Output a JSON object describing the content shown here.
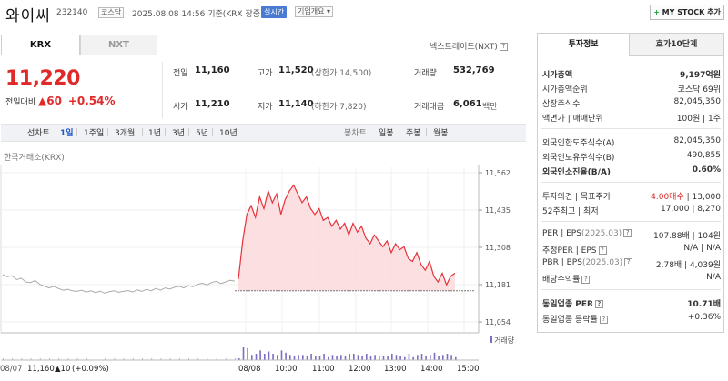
{
  "header": {
    "name": "와이씨",
    "code": "232140",
    "market": "코스닥",
    "datetime": "2025.08.08 14:56 기준(KRX 장중)",
    "realtime": "실시간",
    "overview": "기업개요 ▾",
    "mystock_plus": "+",
    "mystock": " MY STOCK 추가"
  },
  "market_tabs": [
    "KRX",
    "NXT"
  ],
  "nextrade": {
    "label": "넥스트레이드(NXT)",
    "help": "?"
  },
  "price": {
    "current": "11,220",
    "change_label": "전일대비",
    "change_value": "▲60",
    "change_rate": "+0.54%"
  },
  "quote": {
    "prev_close": {
      "label": "전일",
      "value": "11,160"
    },
    "high": {
      "label": "고가",
      "value": "11,520",
      "sub": "(상한가 14,500)"
    },
    "volume": {
      "label": "거래량",
      "value": "532,769"
    },
    "open": {
      "label": "시가",
      "value": "11,210"
    },
    "low": {
      "label": "저가",
      "value": "11,140",
      "sub": "(하한가 7,820)"
    },
    "amount": {
      "label": "거래대금",
      "value": "6,061",
      "unit": "백만"
    }
  },
  "periods": {
    "line": "선차트",
    "items": [
      "1일",
      "1주일",
      "3개월",
      "1년",
      "3년",
      "5년",
      "10년"
    ],
    "candle": "봉차트",
    "candle_items": [
      "일봉",
      "주봉",
      "월봉"
    ]
  },
  "chart_data": {
    "type": "line",
    "source": "한국거래소(KRX)",
    "yticks": [
      "11,562",
      "11,435",
      "11,308",
      "11,181",
      "11,054"
    ],
    "ylim": [
      11054,
      11562
    ],
    "xticks": [
      "08/08",
      "10:00",
      "11:00",
      "12:00",
      "13:00",
      "14:00",
      "15:00"
    ],
    "prev_close": 11160,
    "volume_label": "거래량",
    "footer": {
      "date": "08/07",
      "price": "11,160",
      "change": "▲10",
      "rate": "(+0.09%)"
    },
    "prev_day_series": [
      11215,
      11208,
      11212,
      11198,
      11203,
      11190,
      11188,
      11195,
      11182,
      11176,
      11170,
      11175,
      11168,
      11162,
      11165,
      11160,
      11158,
      11162,
      11156,
      11160,
      11154,
      11159,
      11152,
      11157,
      11160,
      11155,
      11158,
      11161,
      11156,
      11163,
      11158,
      11165,
      11160,
      11168,
      11162,
      11170,
      11166,
      11172,
      11175,
      11170,
      11178,
      11174,
      11182,
      11186,
      11180,
      11188,
      11192,
      11185,
      11190,
      11196,
      11193
    ],
    "today_series": [
      11200,
      11330,
      11420,
      11450,
      11410,
      11480,
      11440,
      11500,
      11460,
      11490,
      11420,
      11470,
      11500,
      11520,
      11490,
      11460,
      11480,
      11440,
      11420,
      11440,
      11400,
      11410,
      11380,
      11400,
      11370,
      11390,
      11350,
      11390,
      11360,
      11380,
      11340,
      11320,
      11350,
      11330,
      11310,
      11330,
      11290,
      11320,
      11300,
      11310,
      11270,
      11260,
      11290,
      11250,
      11230,
      11260,
      11210,
      11190,
      11220,
      11180,
      11210,
      11220
    ]
  },
  "right_panel": {
    "tabs": [
      "투자정보",
      "호가10단계"
    ],
    "rows1": [
      {
        "label": "시가총액",
        "value": "9,197억원"
      },
      {
        "label": "시가총액순위",
        "value": "코스닥 69위"
      },
      {
        "label": "상장주식수",
        "value": "82,045,350"
      },
      {
        "label": "액면가 | 매매단위",
        "value": "100원 | 1주"
      }
    ],
    "rows2": [
      {
        "label": "외국인한도주식수(A)",
        "value": "82,045,350"
      },
      {
        "label": "외국인보유주식수(B)",
        "value": "490,855"
      },
      {
        "label": "외국인소진율(B/A)",
        "value": "0.60%"
      }
    ],
    "rows3": [
      {
        "label": "투자의견 | 목표주가",
        "value_red": "4.00매수",
        "value": "| 13,000"
      },
      {
        "label": "52주최고 | 최저",
        "value": "17,000 | 8,270"
      }
    ],
    "rows4": [
      {
        "label": "PER | EPS",
        "period": "(2025.03)",
        "value": "107.88배 | 104원"
      },
      {
        "label": "추정PER | EPS",
        "value": "N/A | N/A"
      },
      {
        "label": "PBR | BPS",
        "period": "(2025.03)",
        "value": "2.78배 | 4,039원"
      },
      {
        "label": "배당수익률",
        "value": "N/A"
      }
    ],
    "rows5": [
      {
        "label": "동일업종 PER",
        "value": "10.71배"
      },
      {
        "label": "동일업종 등락률",
        "value": "+0.36%"
      }
    ],
    "help": "?"
  },
  "colors": {
    "rise": "#e02a2a",
    "fall": "#1b56c5",
    "accent": "#4a7bd3"
  }
}
